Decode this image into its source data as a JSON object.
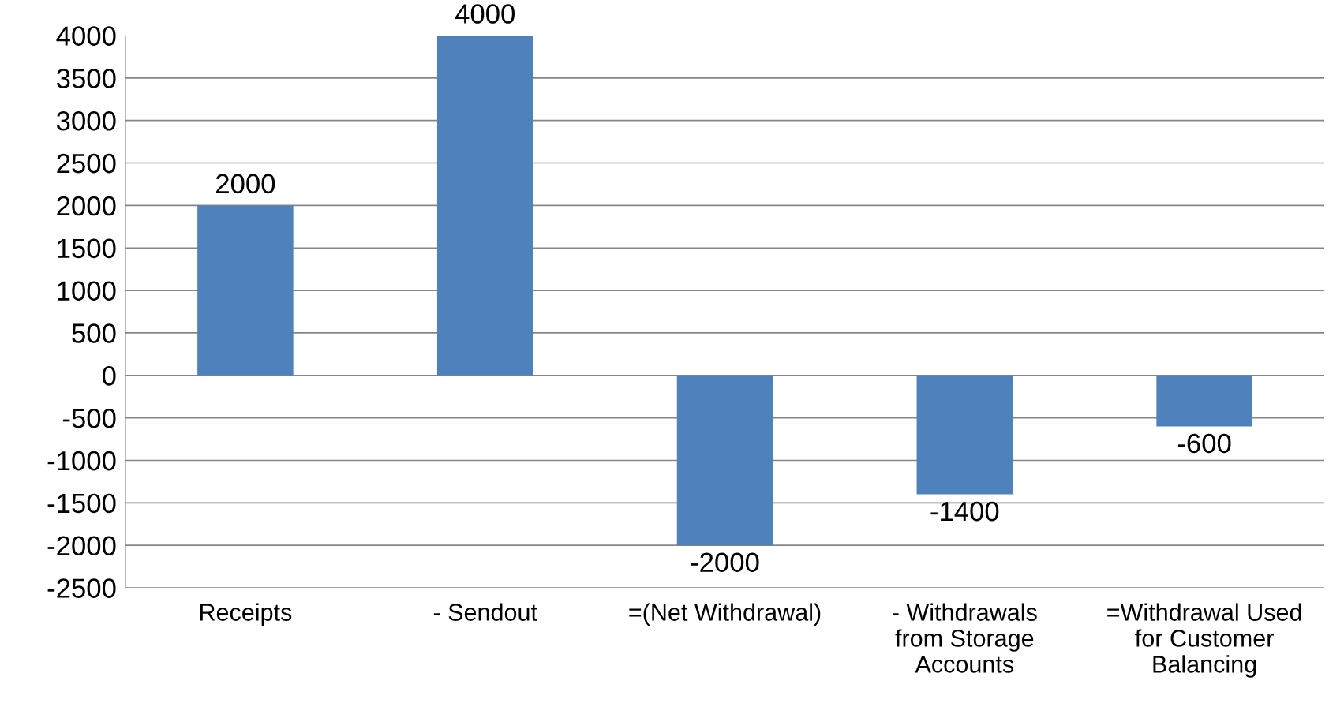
{
  "chart_data": {
    "type": "bar",
    "categories": [
      "Receipts",
      "- Sendout",
      "=(Net Withdrawal)",
      "- Withdrawals\nfrom Storage\nAccounts",
      "=Withdrawal Used\nfor Customer\nBalancing"
    ],
    "values": [
      2000,
      4000,
      -2000,
      -1400,
      -600
    ],
    "color": "#4f81bd",
    "data_labels": true,
    "ylim": [
      -2500,
      4000
    ],
    "yticks": [
      -2500,
      -2000,
      -1500,
      -1000,
      -500,
      0,
      500,
      1000,
      1500,
      2000,
      2500,
      3000,
      3500,
      4000
    ],
    "grid": "y"
  }
}
